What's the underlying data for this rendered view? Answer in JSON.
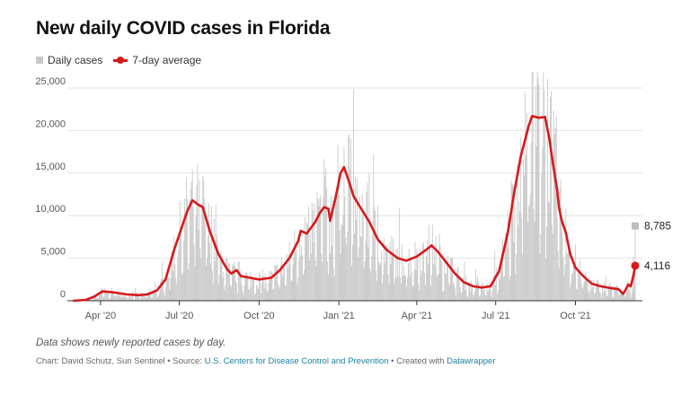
{
  "chart_data": {
    "type": "bar+line",
    "title": "New daily COVID cases in Florida",
    "legend": {
      "placement": "top-left",
      "bars_label": "Daily cases",
      "line_label": "7-day average"
    },
    "colors": {
      "bars": "#c8c8c8",
      "line": "#d7191c",
      "bar_end": "#bdbdbd"
    },
    "x_domain": [
      "2020-03-01",
      "2021-12-09"
    ],
    "x_ticks": [
      {
        "date": "2020-04-01",
        "label": "Apr '20"
      },
      {
        "date": "2020-07-01",
        "label": "Jul '20"
      },
      {
        "date": "2020-10-01",
        "label": "Oct '20"
      },
      {
        "date": "2021-01-01",
        "label": "Jan '21"
      },
      {
        "date": "2021-04-01",
        "label": "Apr '21"
      },
      {
        "date": "2021-07-01",
        "label": "Jul '21"
      },
      {
        "date": "2021-10-01",
        "label": "Oct '21"
      }
    ],
    "y_ticks": [
      {
        "value": 0,
        "label": "0"
      },
      {
        "value": 5000,
        "label": "5,000"
      },
      {
        "value": 10000,
        "label": "10,000"
      },
      {
        "value": 15000,
        "label": "15,000"
      },
      {
        "value": 20000,
        "label": "20,000"
      },
      {
        "value": 25000,
        "label": "25,000"
      }
    ],
    "ylim": [
      0,
      25000
    ],
    "grid": "horizontal",
    "seven_day_average": [
      {
        "date": "2020-03-01",
        "value": 0
      },
      {
        "date": "2020-03-15",
        "value": 100
      },
      {
        "date": "2020-03-25",
        "value": 500
      },
      {
        "date": "2020-04-03",
        "value": 1100
      },
      {
        "date": "2020-04-15",
        "value": 1000
      },
      {
        "date": "2020-05-01",
        "value": 750
      },
      {
        "date": "2020-05-15",
        "value": 650
      },
      {
        "date": "2020-05-25",
        "value": 750
      },
      {
        "date": "2020-06-05",
        "value": 1200
      },
      {
        "date": "2020-06-15",
        "value": 2500
      },
      {
        "date": "2020-06-25",
        "value": 6000
      },
      {
        "date": "2020-07-05",
        "value": 9000
      },
      {
        "date": "2020-07-10",
        "value": 10500
      },
      {
        "date": "2020-07-16",
        "value": 11800
      },
      {
        "date": "2020-07-24",
        "value": 11200
      },
      {
        "date": "2020-07-28",
        "value": 11000
      },
      {
        "date": "2020-08-05",
        "value": 8200
      },
      {
        "date": "2020-08-15",
        "value": 5500
      },
      {
        "date": "2020-08-25",
        "value": 3700
      },
      {
        "date": "2020-08-30",
        "value": 3200
      },
      {
        "date": "2020-09-05",
        "value": 3600
      },
      {
        "date": "2020-09-10",
        "value": 2900
      },
      {
        "date": "2020-09-20",
        "value": 2700
      },
      {
        "date": "2020-10-01",
        "value": 2500
      },
      {
        "date": "2020-10-15",
        "value": 2700
      },
      {
        "date": "2020-10-25",
        "value": 3600
      },
      {
        "date": "2020-11-05",
        "value": 5000
      },
      {
        "date": "2020-11-15",
        "value": 7000
      },
      {
        "date": "2020-11-18",
        "value": 8200
      },
      {
        "date": "2020-11-25",
        "value": 7900
      },
      {
        "date": "2020-12-05",
        "value": 9300
      },
      {
        "date": "2020-12-10",
        "value": 10300
      },
      {
        "date": "2020-12-15",
        "value": 11000
      },
      {
        "date": "2020-12-20",
        "value": 10800
      },
      {
        "date": "2020-12-22",
        "value": 9400
      },
      {
        "date": "2020-12-28",
        "value": 12000
      },
      {
        "date": "2021-01-03",
        "value": 15000
      },
      {
        "date": "2021-01-07",
        "value": 15700
      },
      {
        "date": "2021-01-12",
        "value": 14200
      },
      {
        "date": "2021-01-18",
        "value": 12300
      },
      {
        "date": "2021-01-25",
        "value": 11100
      },
      {
        "date": "2021-02-05",
        "value": 9300
      },
      {
        "date": "2021-02-15",
        "value": 7200
      },
      {
        "date": "2021-02-25",
        "value": 6000
      },
      {
        "date": "2021-03-10",
        "value": 5000
      },
      {
        "date": "2021-03-20",
        "value": 4700
      },
      {
        "date": "2021-04-01",
        "value": 5200
      },
      {
        "date": "2021-04-12",
        "value": 6000
      },
      {
        "date": "2021-04-18",
        "value": 6500
      },
      {
        "date": "2021-04-25",
        "value": 5800
      },
      {
        "date": "2021-05-05",
        "value": 4500
      },
      {
        "date": "2021-05-15",
        "value": 3200
      },
      {
        "date": "2021-05-25",
        "value": 2200
      },
      {
        "date": "2021-06-05",
        "value": 1700
      },
      {
        "date": "2021-06-15",
        "value": 1550
      },
      {
        "date": "2021-06-25",
        "value": 1700
      },
      {
        "date": "2021-07-05",
        "value": 3500
      },
      {
        "date": "2021-07-15",
        "value": 8000
      },
      {
        "date": "2021-07-22",
        "value": 12500
      },
      {
        "date": "2021-07-30",
        "value": 17000
      },
      {
        "date": "2021-08-08",
        "value": 20500
      },
      {
        "date": "2021-08-12",
        "value": 21700
      },
      {
        "date": "2021-08-20",
        "value": 21500
      },
      {
        "date": "2021-08-27",
        "value": 21600
      },
      {
        "date": "2021-09-01",
        "value": 19000
      },
      {
        "date": "2021-09-06",
        "value": 15500
      },
      {
        "date": "2021-09-10",
        "value": 13000
      },
      {
        "date": "2021-09-12",
        "value": 11000
      },
      {
        "date": "2021-09-15",
        "value": 9500
      },
      {
        "date": "2021-09-20",
        "value": 8000
      },
      {
        "date": "2021-09-25",
        "value": 5500
      },
      {
        "date": "2021-10-01",
        "value": 3900
      },
      {
        "date": "2021-10-10",
        "value": 2900
      },
      {
        "date": "2021-10-20",
        "value": 2000
      },
      {
        "date": "2021-10-30",
        "value": 1700
      },
      {
        "date": "2021-11-10",
        "value": 1500
      },
      {
        "date": "2021-11-20",
        "value": 1350
      },
      {
        "date": "2021-11-25",
        "value": 800
      },
      {
        "date": "2021-11-28",
        "value": 1300
      },
      {
        "date": "2021-12-01",
        "value": 1900
      },
      {
        "date": "2021-12-04",
        "value": 1700
      },
      {
        "date": "2021-12-07",
        "value": 3000
      },
      {
        "date": "2021-12-09",
        "value": 4116
      }
    ],
    "latest": {
      "date": "2021-12-09",
      "daily_cases": 8785,
      "daily_label": "8,785",
      "average": 4116,
      "average_label": "4,116"
    }
  },
  "notes": "Data shows newly reported cases by day.",
  "credits": {
    "prefix": "Chart: David Schutz, Sun Sentinel • Source: ",
    "source_link": "U.S. Centers for Disease Control and Prevention",
    "middle": " • Created with ",
    "tool_link": "Datawrapper"
  }
}
